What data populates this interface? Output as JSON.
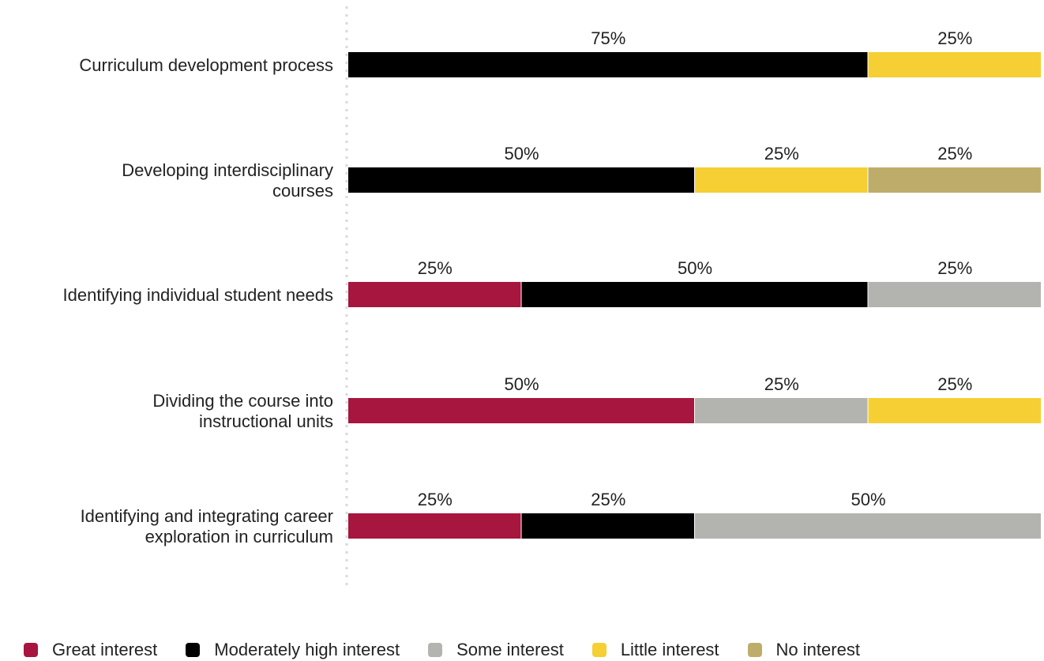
{
  "chart_data": {
    "type": "bar",
    "stacked": true,
    "orientation": "horizontal",
    "percent_scale": true,
    "categories": [
      "Curriculum development process",
      "Developing interdisciplinary courses",
      "Identifying individual student needs",
      "Dividing the course into instructional units",
      "Identifying and integrating career exploration in curriculum"
    ],
    "category_lines": [
      [
        "Curriculum development process"
      ],
      [
        "Developing interdisciplinary",
        "courses"
      ],
      [
        "Identifying individual student needs"
      ],
      [
        "Dividing the course into",
        "instructional units"
      ],
      [
        "Identifying and integrating career",
        "exploration in curriculum"
      ]
    ],
    "series": [
      {
        "name": "Great interest",
        "color": "#a6163f",
        "values": [
          0,
          0,
          25,
          50,
          25
        ]
      },
      {
        "name": "Moderately high interest",
        "color": "#000000",
        "values": [
          75,
          50,
          50,
          0,
          25
        ]
      },
      {
        "name": "Some interest",
        "color": "#b3b3b0",
        "values": [
          0,
          0,
          25,
          25,
          50
        ]
      },
      {
        "name": "Little interest",
        "color": "#f5cf33",
        "values": [
          25,
          25,
          0,
          25,
          0
        ]
      },
      {
        "name": "No interest",
        "color": "#bead6a",
        "values": [
          0,
          25,
          0,
          0,
          0
        ]
      }
    ],
    "value_suffix": "%",
    "xlim": [
      0,
      100
    ],
    "legend_position": "bottom-left",
    "grid": false,
    "title": "",
    "xlabel": "",
    "ylabel": ""
  }
}
